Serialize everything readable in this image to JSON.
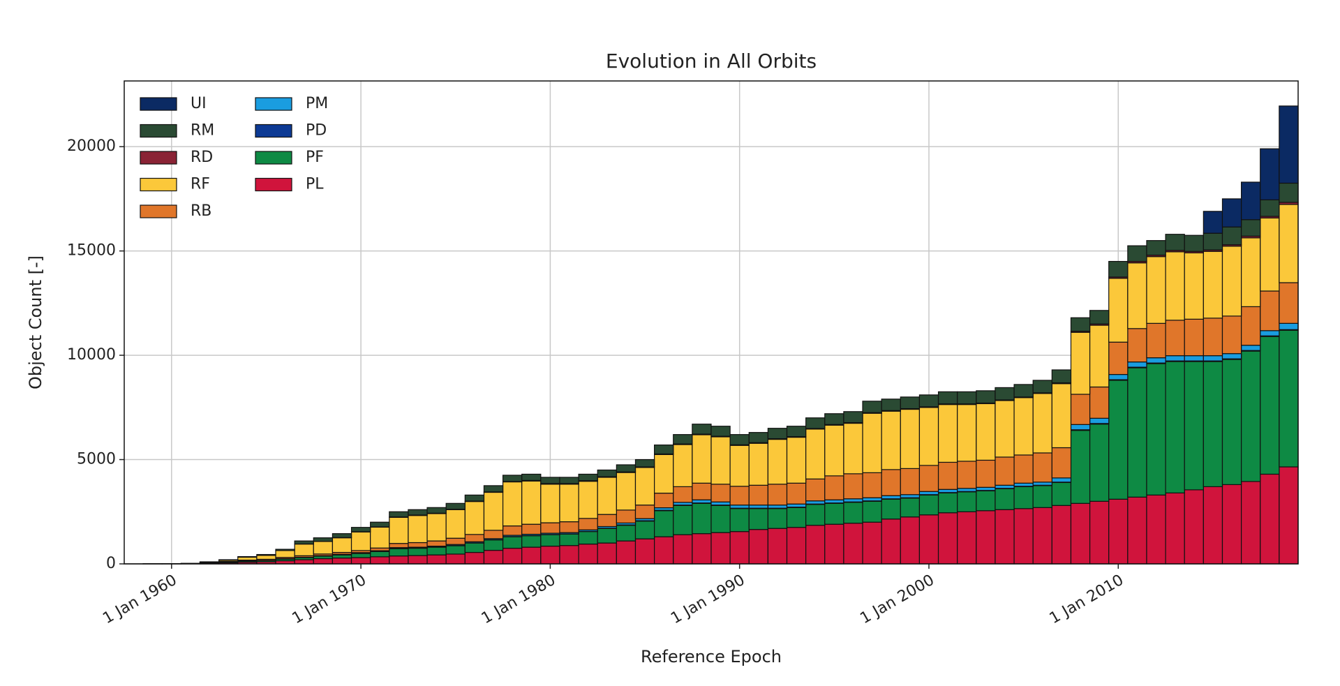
{
  "chart_data": {
    "type": "stacked_bar",
    "title": "Evolution in All Orbits",
    "x_label": "Reference Epoch",
    "y_label": "Object Count [-]",
    "x": [
      1958,
      1959,
      1960,
      1961,
      1962,
      1963,
      1964,
      1965,
      1966,
      1967,
      1968,
      1969,
      1970,
      1971,
      1972,
      1973,
      1974,
      1975,
      1976,
      1977,
      1978,
      1979,
      1980,
      1981,
      1982,
      1983,
      1984,
      1985,
      1986,
      1987,
      1988,
      1989,
      1990,
      1991,
      1992,
      1993,
      1994,
      1995,
      1996,
      1997,
      1998,
      1999,
      2000,
      2001,
      2002,
      2003,
      2004,
      2005,
      2006,
      2007,
      2008,
      2009,
      2010,
      2011,
      2012,
      2013,
      2014,
      2015,
      2016,
      2017,
      2018,
      2019
    ],
    "xlim": [
      1957.5,
      2019.5
    ],
    "xticks": [
      {
        "value": 1960,
        "label": "1 Jan 1960"
      },
      {
        "value": 1970,
        "label": "1 Jan 1970"
      },
      {
        "value": 1980,
        "label": "1 Jan 1980"
      },
      {
        "value": 1990,
        "label": "1 Jan 1990"
      },
      {
        "value": 2000,
        "label": "1 Jan 2000"
      },
      {
        "value": 2010,
        "label": "1 Jan 2010"
      }
    ],
    "ylim": [
      0,
      23150
    ],
    "yticks": [
      0,
      5000,
      10000,
      15000,
      20000
    ],
    "grid": true,
    "legend": "upper left",
    "series": [
      {
        "name": "PL",
        "color": "#d0143c",
        "values": [
          0,
          1,
          2,
          5,
          30,
          50,
          80,
          100,
          150,
          200,
          250,
          280,
          300,
          340,
          380,
          400,
          430,
          470,
          550,
          650,
          750,
          800,
          850,
          880,
          950,
          1000,
          1100,
          1200,
          1300,
          1400,
          1450,
          1500,
          1550,
          1650,
          1700,
          1750,
          1850,
          1900,
          1950,
          2000,
          2150,
          2250,
          2350,
          2450,
          2500,
          2550,
          2600,
          2650,
          2700,
          2800,
          2900,
          3000,
          3100,
          3200,
          3300,
          3400,
          3550,
          3700,
          3800,
          3950,
          4300,
          4650
        ]
      },
      {
        "name": "PF",
        "color": "#0e8a44",
        "values": [
          0,
          0,
          1,
          3,
          20,
          40,
          50,
          60,
          80,
          100,
          120,
          150,
          200,
          250,
          350,
          350,
          370,
          400,
          450,
          500,
          550,
          550,
          550,
          550,
          600,
          700,
          750,
          850,
          1250,
          1400,
          1450,
          1300,
          1100,
          1000,
          950,
          950,
          1000,
          1000,
          1000,
          1000,
          950,
          900,
          950,
          950,
          950,
          950,
          1000,
          1050,
          1050,
          1100,
          3500,
          3700,
          5700,
          6200,
          6300,
          6300,
          6150,
          6000,
          6000,
          6250,
          6600,
          6550
        ]
      },
      {
        "name": "PD",
        "color": "#0d3a94",
        "values": [
          0,
          0,
          0,
          0,
          0,
          0,
          0,
          0,
          0,
          0,
          5,
          5,
          10,
          10,
          10,
          10,
          10,
          10,
          10,
          10,
          10,
          10,
          10,
          10,
          10,
          10,
          20,
          20,
          20,
          20,
          20,
          20,
          20,
          20,
          20,
          20,
          20,
          20,
          20,
          20,
          20,
          20,
          20,
          20,
          20,
          20,
          20,
          20,
          20,
          20,
          30,
          30,
          30,
          30,
          30,
          30,
          30,
          30,
          30,
          30,
          30,
          30
        ]
      },
      {
        "name": "PM",
        "color": "#1a9de0",
        "values": [
          0,
          0,
          0,
          1,
          5,
          5,
          10,
          10,
          20,
          20,
          20,
          25,
          30,
          30,
          40,
          40,
          40,
          50,
          50,
          50,
          60,
          60,
          60,
          60,
          70,
          80,
          90,
          100,
          120,
          130,
          150,
          150,
          150,
          150,
          150,
          150,
          150,
          150,
          150,
          150,
          150,
          150,
          150,
          150,
          150,
          150,
          150,
          150,
          150,
          200,
          250,
          250,
          250,
          250,
          250,
          250,
          250,
          250,
          250,
          250,
          250,
          300
        ]
      },
      {
        "name": "RB",
        "color": "#e0762a",
        "values": [
          0,
          2,
          3,
          5,
          15,
          25,
          40,
          50,
          60,
          70,
          80,
          90,
          100,
          130,
          200,
          220,
          250,
          300,
          350,
          400,
          450,
          480,
          500,
          520,
          550,
          580,
          620,
          650,
          700,
          750,
          800,
          850,
          900,
          950,
          1000,
          1000,
          1050,
          1150,
          1200,
          1200,
          1250,
          1250,
          1250,
          1300,
          1300,
          1300,
          1350,
          1350,
          1400,
          1450,
          1450,
          1500,
          1550,
          1600,
          1650,
          1700,
          1750,
          1800,
          1800,
          1850,
          1900,
          1950
        ]
      },
      {
        "name": "RF",
        "color": "#fbc83a",
        "values": [
          2,
          3,
          5,
          8,
          20,
          60,
          140,
          190,
          330,
          560,
          600,
          700,
          890,
          1000,
          1250,
          1300,
          1310,
          1370,
          1580,
          1820,
          2110,
          2070,
          1850,
          1800,
          1780,
          1780,
          1800,
          1800,
          1850,
          2020,
          2320,
          2270,
          1960,
          2010,
          2150,
          2200,
          2390,
          2430,
          2420,
          2850,
          2800,
          2840,
          2780,
          2770,
          2720,
          2710,
          2710,
          2750,
          2850,
          3070,
          2970,
          2960,
          3060,
          3150,
          3200,
          3280,
          3180,
          3200,
          3350,
          3300,
          3500,
          3750
        ]
      },
      {
        "name": "RD",
        "color": "#8a2335",
        "values": [
          0,
          0,
          0,
          0,
          0,
          0,
          0,
          0,
          0,
          5,
          5,
          10,
          10,
          10,
          20,
          20,
          20,
          20,
          20,
          20,
          20,
          30,
          30,
          30,
          30,
          30,
          30,
          30,
          30,
          30,
          30,
          30,
          30,
          30,
          30,
          30,
          30,
          30,
          30,
          30,
          30,
          30,
          30,
          30,
          30,
          30,
          30,
          30,
          30,
          40,
          50,
          60,
          60,
          70,
          70,
          70,
          70,
          70,
          70,
          80,
          80,
          100
        ]
      },
      {
        "name": "RM",
        "color": "#2a4a33",
        "values": [
          0,
          1,
          2,
          3,
          10,
          20,
          30,
          40,
          60,
          145,
          170,
          190,
          210,
          230,
          250,
          260,
          270,
          280,
          290,
          300,
          300,
          300,
          300,
          300,
          310,
          320,
          340,
          350,
          430,
          450,
          480,
          480,
          490,
          490,
          500,
          500,
          510,
          520,
          530,
          550,
          550,
          560,
          570,
          580,
          580,
          590,
          590,
          600,
          600,
          620,
          650,
          650,
          750,
          750,
          700,
          770,
          770,
          800,
          850,
          790,
          790,
          920
        ]
      },
      {
        "name": "UI",
        "color": "#0b2a63",
        "values": [
          0,
          0,
          0,
          0,
          0,
          0,
          0,
          0,
          0,
          0,
          0,
          0,
          0,
          0,
          0,
          0,
          0,
          0,
          0,
          0,
          0,
          0,
          0,
          0,
          0,
          0,
          0,
          0,
          0,
          0,
          0,
          0,
          0,
          0,
          0,
          0,
          0,
          0,
          0,
          0,
          0,
          0,
          0,
          0,
          0,
          0,
          0,
          0,
          0,
          0,
          0,
          0,
          0,
          0,
          0,
          0,
          0,
          1050,
          1350,
          1800,
          2450,
          3700
        ]
      }
    ]
  }
}
